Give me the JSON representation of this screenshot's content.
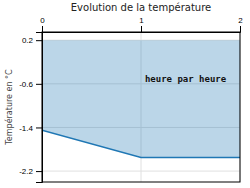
{
  "chart_data": {
    "type": "area",
    "title": "Evolution de la température",
    "ylabel": "Température en °C",
    "x": [
      0,
      0,
      1,
      2
    ],
    "values": [
      0.2,
      -1.45,
      -1.95,
      -1.95
    ],
    "top": [
      0.2,
      0.2,
      0.2,
      0.2
    ],
    "xlim": [
      0,
      2
    ],
    "xticks": [
      0,
      1,
      2
    ],
    "ylim": [
      -2.4,
      0.35
    ],
    "yticks": [
      0.2,
      -0.6,
      -1.4,
      -2.2
    ],
    "grid": true,
    "annotations": [
      {
        "text": "heure par heure",
        "x": 1.45,
        "y": -0.52
      }
    ]
  }
}
